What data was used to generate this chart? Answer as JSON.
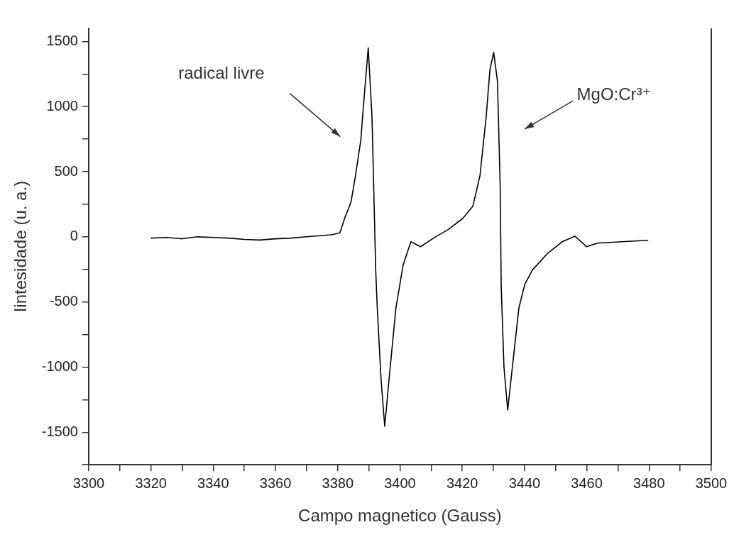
{
  "chart_data": {
    "type": "line",
    "xlabel": "Campo magnetico (Gauss)",
    "ylabel": "Iintesidade (u. a.)",
    "xlim": [
      3300,
      3500
    ],
    "xticks": [
      3300,
      {
        "value": 3310,
        "label": null
      },
      3320,
      {
        "value": 3330,
        "label": null
      },
      3340,
      {
        "value": 3350,
        "label": null
      },
      3360,
      {
        "value": 3370,
        "label": null
      },
      3380,
      {
        "value": 3390,
        "label": null
      },
      3400,
      {
        "value": 3410,
        "label": null
      },
      3420,
      {
        "value": 3430,
        "label": null
      },
      3440,
      {
        "value": 3450,
        "label": null
      },
      3460,
      {
        "value": 3470,
        "label": null
      },
      3480,
      {
        "value": 3490,
        "label": null
      },
      3500
    ],
    "ylim": [
      -1750,
      1600
    ],
    "yticks": [
      {
        "value": -1750,
        "label": null
      },
      -1500,
      {
        "value": -1250,
        "label": null
      },
      -1000,
      {
        "value": -750,
        "label": null
      },
      -500,
      {
        "value": -250,
        "label": null
      },
      0,
      {
        "value": 250,
        "label": null
      },
      500,
      {
        "value": 750,
        "label": null
      },
      1000,
      {
        "value": 1250,
        "label": null
      },
      1500
    ],
    "grid": false,
    "legend": false,
    "marker": "none",
    "line_style": "solid",
    "series": [
      {
        "color": "#000000",
        "x": [
          3320,
          3325,
          3330,
          3335,
          3340,
          3345,
          3350,
          3355,
          3360,
          3365,
          3370,
          3375,
          3378,
          3380.7,
          3382.2,
          3384.3,
          3385.7,
          3387.4,
          3388.6,
          3389.8,
          3391,
          3392.2,
          3392.7,
          3393.9,
          3395.1,
          3396.5,
          3398.7,
          3401,
          3403.5,
          3406.6,
          3411.4,
          3415.4,
          3420.2,
          3423.4,
          3425.7,
          3427.7,
          3428.9,
          3430.1,
          3431.3,
          3432.2,
          3432.5,
          3433.4,
          3434.6,
          3436.1,
          3438.2,
          3440.1,
          3442.5,
          3447.3,
          3452.1,
          3456.2,
          3460,
          3463.4,
          3471.3,
          3479.6
        ],
        "values": [
          -10,
          -5,
          -15,
          0,
          -5,
          -10,
          -20,
          -25,
          -15,
          -10,
          0,
          10,
          15,
          30,
          140,
          270,
          470,
          740,
          1105,
          1450,
          925,
          -256,
          -545,
          -1090,
          -1455,
          -1090,
          -545,
          -218,
          -38,
          -76,
          0,
          54,
          142,
          234,
          470,
          925,
          1285,
          1415,
          1198,
          381,
          -365,
          -1000,
          -1330,
          -1000,
          -545,
          -365,
          -256,
          -130,
          -38,
          5,
          -76,
          -49,
          -38,
          -27
        ]
      }
    ],
    "annotations": [
      "radical livre",
      "MgO:Cr³⁺"
    ]
  }
}
